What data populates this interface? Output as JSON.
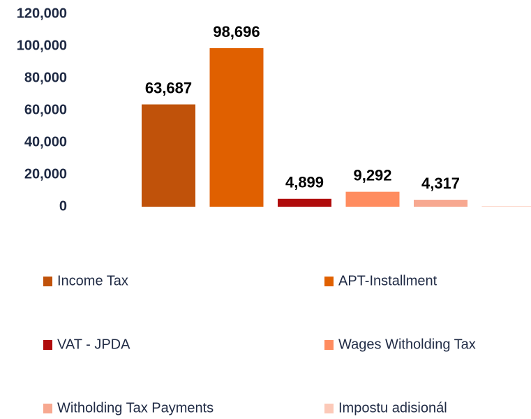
{
  "chart_data": {
    "type": "bar",
    "series": [
      {
        "name": "Income Tax",
        "color": "#c0520a",
        "values": [
          63687
        ],
        "value_labels": [
          "63,687"
        ]
      },
      {
        "name": "APT-Installment",
        "color": "#e06000",
        "values": [
          98696
        ],
        "value_labels": [
          "98,696"
        ]
      },
      {
        "name": "VAT - JPDA",
        "color": "#b00c0c",
        "values": [
          4899
        ],
        "value_labels": [
          "4,899"
        ]
      },
      {
        "name": "Wages Witholding Tax",
        "color": "#ff8c5f",
        "values": [
          9292
        ],
        "value_labels": [
          "9,292"
        ]
      },
      {
        "name": "Witholding Tax Payments",
        "color": "#f7a890",
        "values": [
          4317
        ],
        "value_labels": [
          "4,317"
        ]
      },
      {
        "name": "Impostu adisionál",
        "color": "#fcc9b8",
        "values": [
          300
        ]
      }
    ],
    "ylim": [
      0,
      120000
    ],
    "yticks": [
      0,
      {
        "value": 20000,
        "label": "20,000"
      },
      {
        "value": 40000,
        "label": "40,000"
      },
      {
        "value": 60000,
        "label": "60,000"
      },
      {
        "value": 80000,
        "label": "80,000"
      },
      {
        "value": 100000,
        "label": "100,000"
      },
      {
        "value": 120000,
        "label": "120,000"
      }
    ],
    "grid": false,
    "legend": "bottom"
  }
}
